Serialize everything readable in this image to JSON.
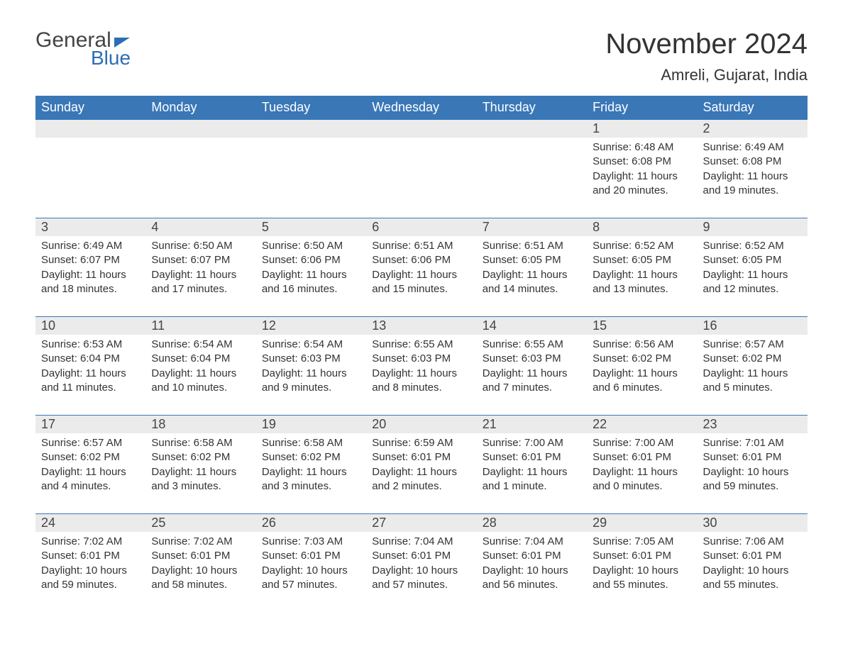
{
  "logo": {
    "text_top": "General",
    "text_bottom": "Blue"
  },
  "title": "November 2024",
  "location": "Amreli, Gujarat, India",
  "colors": {
    "header_bg": "#3a77b7",
    "header_text": "#ffffff",
    "daynum_bg": "#ebebeb",
    "border": "#3a77b7",
    "body_text": "#333333",
    "logo_blue": "#2c6eb5"
  },
  "daysOfWeek": [
    "Sunday",
    "Monday",
    "Tuesday",
    "Wednesday",
    "Thursday",
    "Friday",
    "Saturday"
  ],
  "weeks": [
    [
      {
        "n": "",
        "lines": []
      },
      {
        "n": "",
        "lines": []
      },
      {
        "n": "",
        "lines": []
      },
      {
        "n": "",
        "lines": []
      },
      {
        "n": "",
        "lines": []
      },
      {
        "n": "1",
        "lines": [
          "Sunrise: 6:48 AM",
          "Sunset: 6:08 PM",
          "Daylight: 11 hours",
          "and 20 minutes."
        ]
      },
      {
        "n": "2",
        "lines": [
          "Sunrise: 6:49 AM",
          "Sunset: 6:08 PM",
          "Daylight: 11 hours",
          "and 19 minutes."
        ]
      }
    ],
    [
      {
        "n": "3",
        "lines": [
          "Sunrise: 6:49 AM",
          "Sunset: 6:07 PM",
          "Daylight: 11 hours",
          "and 18 minutes."
        ]
      },
      {
        "n": "4",
        "lines": [
          "Sunrise: 6:50 AM",
          "Sunset: 6:07 PM",
          "Daylight: 11 hours",
          "and 17 minutes."
        ]
      },
      {
        "n": "5",
        "lines": [
          "Sunrise: 6:50 AM",
          "Sunset: 6:06 PM",
          "Daylight: 11 hours",
          "and 16 minutes."
        ]
      },
      {
        "n": "6",
        "lines": [
          "Sunrise: 6:51 AM",
          "Sunset: 6:06 PM",
          "Daylight: 11 hours",
          "and 15 minutes."
        ]
      },
      {
        "n": "7",
        "lines": [
          "Sunrise: 6:51 AM",
          "Sunset: 6:05 PM",
          "Daylight: 11 hours",
          "and 14 minutes."
        ]
      },
      {
        "n": "8",
        "lines": [
          "Sunrise: 6:52 AM",
          "Sunset: 6:05 PM",
          "Daylight: 11 hours",
          "and 13 minutes."
        ]
      },
      {
        "n": "9",
        "lines": [
          "Sunrise: 6:52 AM",
          "Sunset: 6:05 PM",
          "Daylight: 11 hours",
          "and 12 minutes."
        ]
      }
    ],
    [
      {
        "n": "10",
        "lines": [
          "Sunrise: 6:53 AM",
          "Sunset: 6:04 PM",
          "Daylight: 11 hours",
          "and 11 minutes."
        ]
      },
      {
        "n": "11",
        "lines": [
          "Sunrise: 6:54 AM",
          "Sunset: 6:04 PM",
          "Daylight: 11 hours",
          "and 10 minutes."
        ]
      },
      {
        "n": "12",
        "lines": [
          "Sunrise: 6:54 AM",
          "Sunset: 6:03 PM",
          "Daylight: 11 hours",
          "and 9 minutes."
        ]
      },
      {
        "n": "13",
        "lines": [
          "Sunrise: 6:55 AM",
          "Sunset: 6:03 PM",
          "Daylight: 11 hours",
          "and 8 minutes."
        ]
      },
      {
        "n": "14",
        "lines": [
          "Sunrise: 6:55 AM",
          "Sunset: 6:03 PM",
          "Daylight: 11 hours",
          "and 7 minutes."
        ]
      },
      {
        "n": "15",
        "lines": [
          "Sunrise: 6:56 AM",
          "Sunset: 6:02 PM",
          "Daylight: 11 hours",
          "and 6 minutes."
        ]
      },
      {
        "n": "16",
        "lines": [
          "Sunrise: 6:57 AM",
          "Sunset: 6:02 PM",
          "Daylight: 11 hours",
          "and 5 minutes."
        ]
      }
    ],
    [
      {
        "n": "17",
        "lines": [
          "Sunrise: 6:57 AM",
          "Sunset: 6:02 PM",
          "Daylight: 11 hours",
          "and 4 minutes."
        ]
      },
      {
        "n": "18",
        "lines": [
          "Sunrise: 6:58 AM",
          "Sunset: 6:02 PM",
          "Daylight: 11 hours",
          "and 3 minutes."
        ]
      },
      {
        "n": "19",
        "lines": [
          "Sunrise: 6:58 AM",
          "Sunset: 6:02 PM",
          "Daylight: 11 hours",
          "and 3 minutes."
        ]
      },
      {
        "n": "20",
        "lines": [
          "Sunrise: 6:59 AM",
          "Sunset: 6:01 PM",
          "Daylight: 11 hours",
          "and 2 minutes."
        ]
      },
      {
        "n": "21",
        "lines": [
          "Sunrise: 7:00 AM",
          "Sunset: 6:01 PM",
          "Daylight: 11 hours",
          "and 1 minute."
        ]
      },
      {
        "n": "22",
        "lines": [
          "Sunrise: 7:00 AM",
          "Sunset: 6:01 PM",
          "Daylight: 11 hours",
          "and 0 minutes."
        ]
      },
      {
        "n": "23",
        "lines": [
          "Sunrise: 7:01 AM",
          "Sunset: 6:01 PM",
          "Daylight: 10 hours",
          "and 59 minutes."
        ]
      }
    ],
    [
      {
        "n": "24",
        "lines": [
          "Sunrise: 7:02 AM",
          "Sunset: 6:01 PM",
          "Daylight: 10 hours",
          "and 59 minutes."
        ]
      },
      {
        "n": "25",
        "lines": [
          "Sunrise: 7:02 AM",
          "Sunset: 6:01 PM",
          "Daylight: 10 hours",
          "and 58 minutes."
        ]
      },
      {
        "n": "26",
        "lines": [
          "Sunrise: 7:03 AM",
          "Sunset: 6:01 PM",
          "Daylight: 10 hours",
          "and 57 minutes."
        ]
      },
      {
        "n": "27",
        "lines": [
          "Sunrise: 7:04 AM",
          "Sunset: 6:01 PM",
          "Daylight: 10 hours",
          "and 57 minutes."
        ]
      },
      {
        "n": "28",
        "lines": [
          "Sunrise: 7:04 AM",
          "Sunset: 6:01 PM",
          "Daylight: 10 hours",
          "and 56 minutes."
        ]
      },
      {
        "n": "29",
        "lines": [
          "Sunrise: 7:05 AM",
          "Sunset: 6:01 PM",
          "Daylight: 10 hours",
          "and 55 minutes."
        ]
      },
      {
        "n": "30",
        "lines": [
          "Sunrise: 7:06 AM",
          "Sunset: 6:01 PM",
          "Daylight: 10 hours",
          "and 55 minutes."
        ]
      }
    ]
  ]
}
